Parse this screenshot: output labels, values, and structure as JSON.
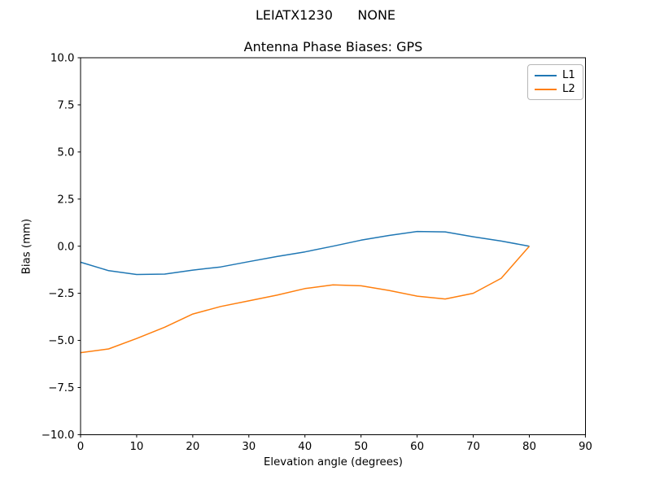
{
  "figure": {
    "suptitle": "LEIATX1230      NONE",
    "background": "#ffffff"
  },
  "chart_data": {
    "type": "line",
    "title": "Antenna Phase Biases: GPS",
    "xlabel": "Elevation angle (degrees)",
    "ylabel": "Bias (mm)",
    "xlim": [
      0,
      90
    ],
    "ylim": [
      -10,
      10
    ],
    "grid": false,
    "legend_position": "upper right",
    "xticks": {
      "values": [
        0,
        10,
        20,
        30,
        40,
        50,
        60,
        70,
        80,
        90
      ],
      "labels": [
        "0",
        "10",
        "20",
        "30",
        "40",
        "50",
        "60",
        "70",
        "80",
        "90"
      ]
    },
    "yticks": {
      "values": [
        -10,
        -7.5,
        -5,
        -2.5,
        0,
        2.5,
        5,
        7.5,
        10
      ],
      "labels": [
        "−10.0",
        "−7.5",
        "−5.0",
        "−2.5",
        "0.0",
        "2.5",
        "5.0",
        "7.5",
        "10.0"
      ]
    },
    "x": [
      0,
      5,
      10,
      15,
      20,
      25,
      30,
      35,
      40,
      45,
      50,
      55,
      60,
      65,
      70,
      75,
      80
    ],
    "series": [
      {
        "name": "L1",
        "color": "#1f77b4",
        "values": [
          -0.85,
          -1.3,
          -1.5,
          -1.48,
          -1.27,
          -1.1,
          -0.82,
          -0.55,
          -0.3,
          0.0,
          0.32,
          0.57,
          0.78,
          0.76,
          0.5,
          0.27,
          0.0
        ]
      },
      {
        "name": "L2",
        "color": "#ff7f0e",
        "values": [
          -5.65,
          -5.45,
          -4.9,
          -4.3,
          -3.6,
          -3.2,
          -2.9,
          -2.6,
          -2.25,
          -2.05,
          -2.1,
          -2.35,
          -2.65,
          -2.8,
          -2.5,
          -1.7,
          0.0
        ]
      }
    ]
  }
}
